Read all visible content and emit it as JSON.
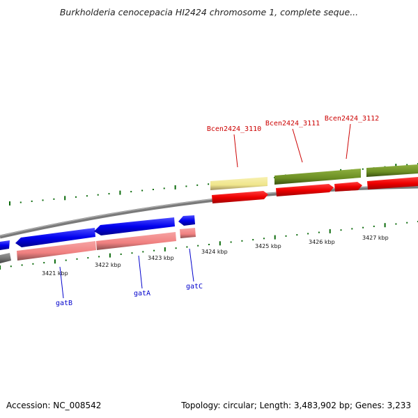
{
  "title": "Burkholderia cenocepacia HI2424 chromosome 1, complete seque...",
  "footer": {
    "accession_label": "Accession:",
    "accession": "NC_008542",
    "topology_label": "Topology:",
    "topology": "circular",
    "length_label": "Length:",
    "length": "3,483,902 bp",
    "genes_label": "Genes:",
    "genes": "3,233"
  },
  "ticks": [
    "3421 kbp",
    "3422 kbp",
    "3423 kbp",
    "3424 kbp",
    "3425 kbp",
    "3426 kbp",
    "3427 kbp"
  ],
  "genes": [
    {
      "name": "gatB",
      "color": "#0000cc"
    },
    {
      "name": "gatA",
      "color": "#0000cc"
    },
    {
      "name": "gatC",
      "color": "#0000cc"
    },
    {
      "name": "Bcen2424_3110",
      "color": "#cc0000"
    },
    {
      "name": "Bcen2424_3111",
      "color": "#cc0000"
    },
    {
      "name": "Bcen2424_3112",
      "color": "#cc0000"
    }
  ],
  "colors": {
    "cds_forward_blue": "#0000ee",
    "cds_reverse_red": "#ee0000",
    "feature_pink": "#f08080",
    "feature_olive": "#6b8e23",
    "feature_pale_yellow": "#f0e68c",
    "backbone_gray": "#808080",
    "tick_green": "#006400"
  }
}
